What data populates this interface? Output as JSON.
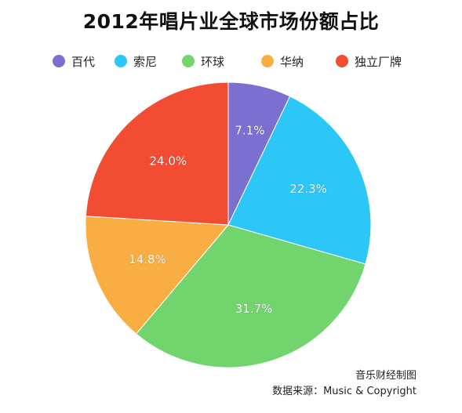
{
  "chart_data": {
    "type": "pie",
    "title": "2012年唱片业全球市场份额占比",
    "slices": [
      {
        "label": "百代",
        "value": 7.1,
        "display": "7.1%",
        "color": "#7b6fd0"
      },
      {
        "label": "索尼",
        "value": 22.3,
        "display": "22.3%",
        "color": "#2dc7f7"
      },
      {
        "label": "环球",
        "value": 31.7,
        "display": "31.7%",
        "color": "#72d46c"
      },
      {
        "label": "华纳",
        "value": 14.8,
        "display": "14.8%",
        "color": "#f9ae43"
      },
      {
        "label": "独立厂牌",
        "value": 24.0,
        "display": "24.0%",
        "color": "#f24d33"
      }
    ],
    "legend_position": "top",
    "start_angle": "12 o'clock",
    "direction": "clockwise"
  },
  "footer": {
    "line1": "音乐财经制图",
    "line2": "数据来源：Music & Copyright"
  }
}
